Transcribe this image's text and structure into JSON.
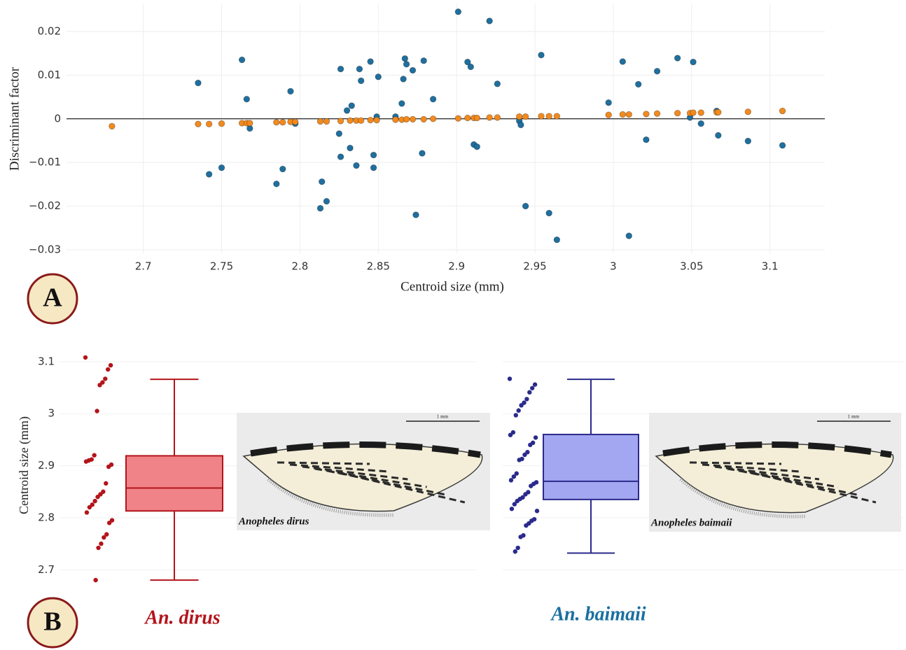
{
  "chart_data": [
    {
      "type": "scatter",
      "panel_label": "A",
      "x_label": "Centroid size (mm)",
      "y_label": "Discriminant factor",
      "xlim": [
        2.651,
        3.135
      ],
      "ylim": [
        -0.0308,
        0.0264
      ],
      "xticks": [
        2.7,
        2.75,
        2.8,
        2.85,
        2.9,
        2.95,
        3,
        3.05,
        3.1
      ],
      "yticks": [
        {
          "value": -0.03,
          "label": "−0.03"
        },
        {
          "value": -0.02,
          "label": "−0.02"
        },
        {
          "value": -0.01,
          "label": "−0.01"
        },
        0,
        0.01,
        0.02
      ],
      "grid": true,
      "zero_line": true,
      "series": [
        {
          "color": "#1f6f9f",
          "x": [
            2.735,
            2.742,
            2.75,
            2.763,
            2.766,
            2.768,
            2.785,
            2.789,
            2.794,
            2.797,
            2.813,
            2.814,
            2.817,
            2.826,
            2.825,
            2.826,
            2.83,
            2.833,
            2.832,
            2.836,
            2.838,
            2.839,
            2.845,
            2.847,
            2.847,
            2.849,
            2.85,
            2.861,
            2.865,
            2.866,
            2.867,
            2.868,
            2.872,
            2.874,
            2.878,
            2.879,
            2.885,
            2.901,
            2.907,
            2.909,
            2.911,
            2.913,
            2.921,
            2.926,
            2.94,
            2.941,
            2.944,
            2.954,
            2.959,
            2.964,
            2.997,
            3.006,
            3.01,
            3.016,
            3.021,
            3.028,
            3.041,
            3.049,
            3.051,
            3.056,
            3.066,
            3.067,
            3.086,
            3.108
          ],
          "values": [
            0.0082,
            -0.0127,
            -0.0112,
            0.0135,
            0.0045,
            -0.0022,
            -0.0149,
            -0.0115,
            0.0063,
            -0.0011,
            -0.0205,
            -0.0144,
            -0.0189,
            0.0114,
            -0.0034,
            -0.0087,
            0.0019,
            0.003,
            -0.0067,
            -0.0107,
            0.0114,
            0.0087,
            0.0131,
            -0.0083,
            -0.0112,
            0.0005,
            0.0096,
            0.0005,
            0.0035,
            0.0091,
            0.0138,
            0.0125,
            0.0111,
            -0.022,
            -0.0079,
            0.0133,
            0.0045,
            0.0245,
            0.013,
            0.0119,
            -0.0059,
            -0.0064,
            0.0224,
            0.008,
            -0.0005,
            -0.0014,
            -0.02,
            0.0146,
            -0.0216,
            -0.0277,
            0.0037,
            0.0131,
            -0.0268,
            0.0079,
            -0.0048,
            0.0109,
            0.0139,
            0.0003,
            0.013,
            -0.0011,
            0.0018,
            -0.0038,
            -0.0051,
            -0.0061
          ]
        },
        {
          "color": "#f28a1e",
          "x": [
            2.68,
            2.735,
            2.742,
            2.75,
            2.763,
            2.766,
            2.768,
            2.785,
            2.789,
            2.794,
            2.797,
            2.813,
            2.817,
            2.826,
            2.832,
            2.836,
            2.839,
            2.845,
            2.849,
            2.861,
            2.865,
            2.868,
            2.872,
            2.879,
            2.885,
            2.901,
            2.907,
            2.911,
            2.913,
            2.921,
            2.926,
            2.94,
            2.944,
            2.954,
            2.959,
            2.964,
            2.997,
            3.006,
            3.01,
            3.021,
            3.028,
            3.041,
            3.049,
            3.051,
            3.056,
            3.066,
            3.067,
            3.086,
            3.108
          ],
          "values": [
            -0.0017,
            -0.0012,
            -0.0012,
            -0.0011,
            -0.001,
            -0.001,
            -0.001,
            -0.0008,
            -0.0008,
            -0.0007,
            -0.0007,
            -0.0006,
            -0.0006,
            -0.0005,
            -0.0004,
            -0.0004,
            -0.0004,
            -0.0003,
            -0.0003,
            -0.0002,
            -0.0002,
            -0.0001,
            -0.0001,
            -0.0001,
            0,
            0.0001,
            0.0002,
            0.0002,
            0.0002,
            0.0003,
            0.0003,
            0.0005,
            0.0005,
            0.0006,
            0.0006,
            0.0006,
            0.0009,
            0.001,
            0.001,
            0.0011,
            0.0012,
            0.0013,
            0.0013,
            0.0014,
            0.0014,
            0.0015,
            0.0015,
            0.0016,
            0.0018
          ]
        }
      ]
    },
    {
      "type": "box",
      "panel_label": "B",
      "y_label": "Centroid size (mm)",
      "ylim": [
        2.66,
        3.12
      ],
      "yticks": [
        2.7,
        2.8,
        2.9,
        3,
        3.1
      ],
      "grid": true,
      "series": [
        {
          "name": "An. dirus",
          "color": "#b3141b",
          "fill": "#ef8388",
          "label_color": "#b3141b",
          "box": {
            "min": 2.68,
            "q1": 2.813,
            "median": 2.857,
            "q3": 2.919,
            "max": 3.066
          },
          "values": [
            3.108,
            3.093,
            3.085,
            3.067,
            3.06,
            3.055,
            3.005,
            2.92,
            2.912,
            2.91,
            2.908,
            2.902,
            2.898,
            2.866,
            2.85,
            2.845,
            2.84,
            2.832,
            2.825,
            2.82,
            2.81,
            2.795,
            2.79,
            2.768,
            2.762,
            2.75,
            2.742,
            2.68
          ],
          "image": {
            "caption": "Anopheles dirus",
            "scale_bar": "1 mm"
          }
        },
        {
          "name": "An. baimaii",
          "color": "#2a2a8c",
          "fill": "#a3a6f0",
          "label_color": "#1a6fa0",
          "box": {
            "min": 2.732,
            "q1": 2.835,
            "median": 2.87,
            "q3": 2.96,
            "max": 3.066
          },
          "values": [
            3.067,
            3.056,
            3.049,
            3.041,
            3.028,
            3.021,
            3.016,
            3.006,
            2.997,
            2.964,
            2.959,
            2.954,
            2.944,
            2.94,
            2.926,
            2.921,
            2.913,
            2.911,
            2.885,
            2.879,
            2.872,
            2.868,
            2.865,
            2.861,
            2.849,
            2.845,
            2.839,
            2.836,
            2.832,
            2.826,
            2.817,
            2.813,
            2.797,
            2.794,
            2.789,
            2.785,
            2.766,
            2.763,
            2.742,
            2.735
          ],
          "image": {
            "caption": "Anopheles baimaii",
            "scale_bar": "1 mm"
          }
        }
      ]
    }
  ]
}
